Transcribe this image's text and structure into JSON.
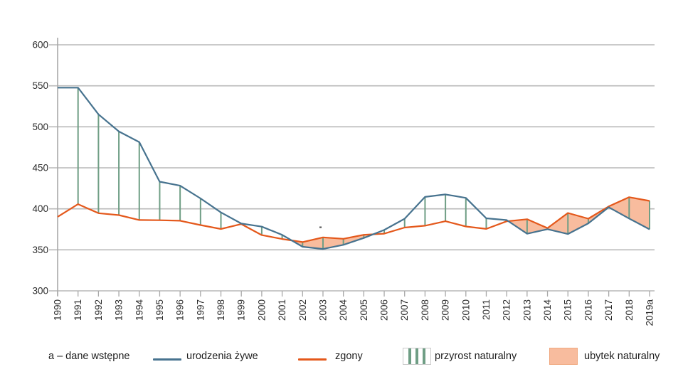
{
  "chart_data": {
    "type": "line",
    "x": [
      1990,
      1991,
      1992,
      1993,
      1994,
      1995,
      1996,
      1997,
      1998,
      1999,
      2000,
      2001,
      2002,
      2003,
      2004,
      2005,
      2006,
      2007,
      2008,
      2009,
      2010,
      2011,
      2012,
      2013,
      2014,
      2015,
      2016,
      2017,
      2018,
      2019
    ],
    "x_tick_labels": [
      "1990",
      "1991",
      "1992",
      "1993",
      "1994",
      "1995",
      "1996",
      "1997",
      "1998",
      "1999",
      "2000",
      "2001",
      "2002",
      "2003",
      "2004",
      "2005",
      "2006",
      "2007",
      "2008",
      "2009",
      "2010",
      "2011",
      "2012",
      "2013",
      "2014",
      "2015",
      "2016",
      "2017",
      "2018",
      "2019a"
    ],
    "y_ticks": [
      300,
      350,
      400,
      450,
      500,
      550,
      600
    ],
    "ylim": [
      300,
      600
    ],
    "grid": true,
    "legend_position": "bottom",
    "series": [
      {
        "name": "urodzenia żywe",
        "values": [
          547.7,
          547.7,
          515.2,
          494.3,
          481.3,
          433.1,
          428.2,
          412.7,
          395.6,
          382.0,
          378.3,
          368.2,
          353.8,
          351.1,
          356.1,
          364.4,
          374.2,
          387.9,
          414.5,
          417.6,
          413.3,
          388.4,
          386.3,
          369.6,
          375.2,
          369.3,
          382.3,
          402.0,
          388.2,
          375.0
        ]
      },
      {
        "name": "zgony",
        "values": [
          390.3,
          405.7,
          394.7,
          392.3,
          386.4,
          386.1,
          385.5,
          380.2,
          375.4,
          381.4,
          368.0,
          363.2,
          359.5,
          365.2,
          363.5,
          368.3,
          369.7,
          377.2,
          379.4,
          384.9,
          378.5,
          375.5,
          384.8,
          387.3,
          376.5,
          394.9,
          388.0,
          402.9,
          414.2,
          409.7
        ]
      }
    ],
    "area_between": {
      "surplus_label": "przyrost naturalny",
      "surplus_style": "green-vertical-hatch",
      "deficit_label": "ubytek naturalny",
      "deficit_style": "solid-salmon-fill"
    }
  },
  "legend": {
    "note": "a – dane wstępne",
    "items": [
      {
        "label": "urodzenia żywe",
        "swatch": "line-blue"
      },
      {
        "label": "zgony",
        "swatch": "line-orange"
      },
      {
        "label": "przyrost naturalny",
        "swatch": "hatch-green"
      },
      {
        "label": "ubytek naturalny",
        "swatch": "fill-salmon"
      }
    ]
  },
  "colors": {
    "births_blue": "#47738f",
    "deaths_orange": "#e4581b",
    "surplus_green": "#6f9e85",
    "deficit_fill": "#f8bc9e",
    "deficit_border": "#f0a87f",
    "grid": "#b9b9b9",
    "axis": "#a8a8a8",
    "tick_text": "#2b2b2b"
  }
}
